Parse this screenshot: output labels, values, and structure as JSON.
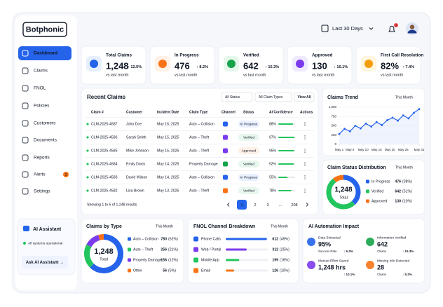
{
  "sidebar": {
    "logo": "Botphonic",
    "nav": [
      "Dashboard",
      "Claims",
      "FNOL",
      "Policies",
      "Customers",
      "Documents",
      "Reports",
      "Alerts",
      "Settings"
    ],
    "alerts_badge": "3",
    "assistant": {
      "title": "AI Assistant",
      "status": "All systems operational",
      "button": "Ask AI Assistant →"
    }
  },
  "header": {
    "date_range": "Last 30 Days",
    "notification_badge": "3"
  },
  "kpis": [
    {
      "title": "Total Claims",
      "value": "1,248",
      "change": "↑ 12.5%",
      "note": "vs last month",
      "color": "#2563eb",
      "bg": "#e7efff"
    },
    {
      "title": "In Progress",
      "value": "476",
      "change": "↑ 8.2%",
      "note": "vs last month",
      "color": "#f97316",
      "bg": "#fff1e6"
    },
    {
      "title": "Verified",
      "value": "642",
      "change": "↑ 15.3%",
      "note": "vs last month",
      "color": "#16a34a",
      "bg": "#e6f7ec"
    },
    {
      "title": "Approved",
      "value": "130",
      "change": "↑ 10.1%",
      "note": "vs last month",
      "color": "#7c3aed",
      "bg": "#f0eaff"
    },
    {
      "title": "First Call Resolution",
      "value": "82%",
      "change": "↑ 7.4%",
      "note": "vs last month",
      "color": "#f59e0b",
      "bg": "#fff6e0"
    }
  ],
  "recent_claims": {
    "title": "Recent Claims",
    "filters": [
      "All Status",
      "All Claim Types"
    ],
    "view_all": "View All",
    "columns": [
      "Claim #",
      "Customer",
      "Incident Date",
      "Claim Type",
      "Channel",
      "Status",
      "AI Confidence",
      "Actions"
    ],
    "confidence_color": "#22c55e",
    "rows": [
      {
        "id": "CLM-2025-4587",
        "customer": "John Doe",
        "date": "May 16, 2025",
        "type": "Auto – Collision",
        "status": "In Progress",
        "status_colors": {
          "fg": "#2563eb",
          "bg": "#e8f0ff"
        },
        "confidence": {
          "value": 88,
          "label": "88%"
        }
      },
      {
        "id": "CLM-2025-4586",
        "customer": "Sarah Smith",
        "date": "May 15, 2025",
        "type": "Auto – Theft",
        "status": "Verified",
        "status_colors": {
          "fg": "#16a34a",
          "bg": "#e7f7ee"
        },
        "confidence": {
          "value": 97,
          "label": "97%"
        }
      },
      {
        "id": "CLM-2025-4585",
        "customer": "Mike Johnson",
        "date": "May 15, 2025",
        "type": "Auto – Theft",
        "status": "Approved",
        "status_colors": {
          "fg": "#ea580c",
          "bg": "#fff0e6"
        },
        "confidence": {
          "value": 95,
          "label": "95%"
        }
      },
      {
        "id": "CLM-2025-4584",
        "customer": "Emily Davis",
        "date": "May 14, 2025",
        "type": "Property Damage",
        "status": "Verified",
        "status_colors": {
          "fg": "#16a34a",
          "bg": "#e7f7ee"
        },
        "confidence": {
          "value": 92,
          "label": "92%"
        }
      },
      {
        "id": "CLM-2025-4583",
        "customer": "David Wilson",
        "date": "May 14, 2025",
        "type": "Auto – Collision",
        "status": "In Progress",
        "status_colors": {
          "fg": "#2563eb",
          "bg": "#e8f0ff"
        },
        "confidence": {
          "value": 55,
          "label": "55%"
        }
      },
      {
        "id": "CLM-2025-4582",
        "customer": "Lisa Brown",
        "date": "May 13, 2025",
        "type": "Auto – Theft",
        "status": "Verified",
        "status_colors": {
          "fg": "#16a34a",
          "bg": "#e7f7ee"
        },
        "confidence": {
          "value": 78,
          "label": "78%"
        }
      }
    ],
    "footer": "Showing 1 to 6 of 1,248 results",
    "pages": [
      "1",
      "2",
      "3",
      "...",
      "208"
    ]
  },
  "claims_trend": {
    "type": "line",
    "title": "Claims Trend",
    "period": "This Month",
    "color": "#2563eb",
    "x": [
      1,
      3,
      5,
      7,
      9,
      11,
      13,
      15,
      17,
      19,
      21,
      23,
      25,
      27,
      29,
      31
    ],
    "values": [
      280,
      420,
      350,
      500,
      430,
      560,
      480,
      600,
      520,
      650,
      720,
      640,
      780,
      700,
      850,
      950
    ],
    "xlim": [
      1,
      31
    ],
    "xticks": [
      {
        "value": 1,
        "label": "May 1"
      },
      {
        "value": 5,
        "label": "May 5"
      },
      {
        "value": 10,
        "label": "May 10"
      },
      {
        "value": 15,
        "label": "May 15"
      },
      {
        "value": 20,
        "label": "May 20"
      },
      {
        "value": 25,
        "label": "May 25"
      },
      {
        "value": 31,
        "label": "May 31"
      }
    ],
    "ylim": [
      0,
      1000
    ],
    "yticks": [
      0,
      250,
      500,
      750,
      {
        "value": 1000,
        "label": "1,000"
      }
    ],
    "grid": true
  },
  "status_distribution": {
    "type": "donut",
    "title": "Claim Status Distribution",
    "period": "This Month",
    "center_value": "1,248",
    "center_label": "Total",
    "series": [
      {
        "name": "In Progress",
        "value": 476,
        "pct_label": "(38%)",
        "color": "#2563eb"
      },
      {
        "name": "Verified",
        "value": 642,
        "pct_label": "(51%)",
        "color": "#22c55e"
      },
      {
        "name": "Approved",
        "value": 130,
        "pct_label": "(10%)",
        "color": "#f97316"
      }
    ]
  },
  "claims_by_type": {
    "type": "donut",
    "title": "Claims by Type",
    "period": "This Month",
    "center_value": "1,248",
    "center_label": "Total",
    "series": [
      {
        "name": "Auto – Collision",
        "value": 780,
        "pct_label": "(62%)",
        "color": "#2563eb"
      },
      {
        "name": "Auto – Theft",
        "value": 256,
        "pct_label": "(21%)",
        "color": "#22c55e"
      },
      {
        "name": "Property Damage",
        "value": 156,
        "pct_label": "(12%)",
        "color": "#7c3aed"
      },
      {
        "name": "Other",
        "value": 56,
        "pct_label": "(5%)",
        "color": "#f97316"
      }
    ]
  },
  "fnol_channels": {
    "title": "FNOL Channel Breakdown",
    "period": "This Month",
    "channels": [
      {
        "name": "Phone Calls",
        "value": 612,
        "pct": {
          "value": 49,
          "label": "(49%)"
        },
        "color": "#2563eb"
      },
      {
        "name": "Web / Portal",
        "value": 312,
        "pct": {
          "value": 25,
          "label": "(25%)"
        },
        "color": "#7c3aed"
      },
      {
        "name": "Mobile App",
        "value": 199,
        "pct": {
          "value": 16,
          "label": "(16%)"
        },
        "color": "#22c55e"
      },
      {
        "name": "Email",
        "value": 126,
        "pct": {
          "value": 10,
          "label": "(10%)"
        },
        "color": "#f97316"
      }
    ]
  },
  "ai_impact": {
    "title": "AI Automation Impact",
    "items": [
      {
        "title": "Data Extracted",
        "value": "95%",
        "sub": "Success Rate",
        "change": "↑ 6.3%",
        "color": "#2563eb",
        "change_color": "#16a34a"
      },
      {
        "title": "Information Verified",
        "value": "642",
        "sub": "Claims",
        "change": "↑ 15.3%",
        "color": "#16a34a",
        "change_color": "#16a34a"
      },
      {
        "title": "Manual Effort Saved",
        "value": "1,248 hrs",
        "sub": "",
        "change": "↑ 10.1%",
        "color": "#7c3aed",
        "change_color": "#16a34a"
      },
      {
        "title": "Missing Info Detected",
        "value": "28",
        "sub": "Claims",
        "change": "↓ 5.2%",
        "color": "#f97316",
        "change_color": "#dc2626"
      }
    ]
  }
}
